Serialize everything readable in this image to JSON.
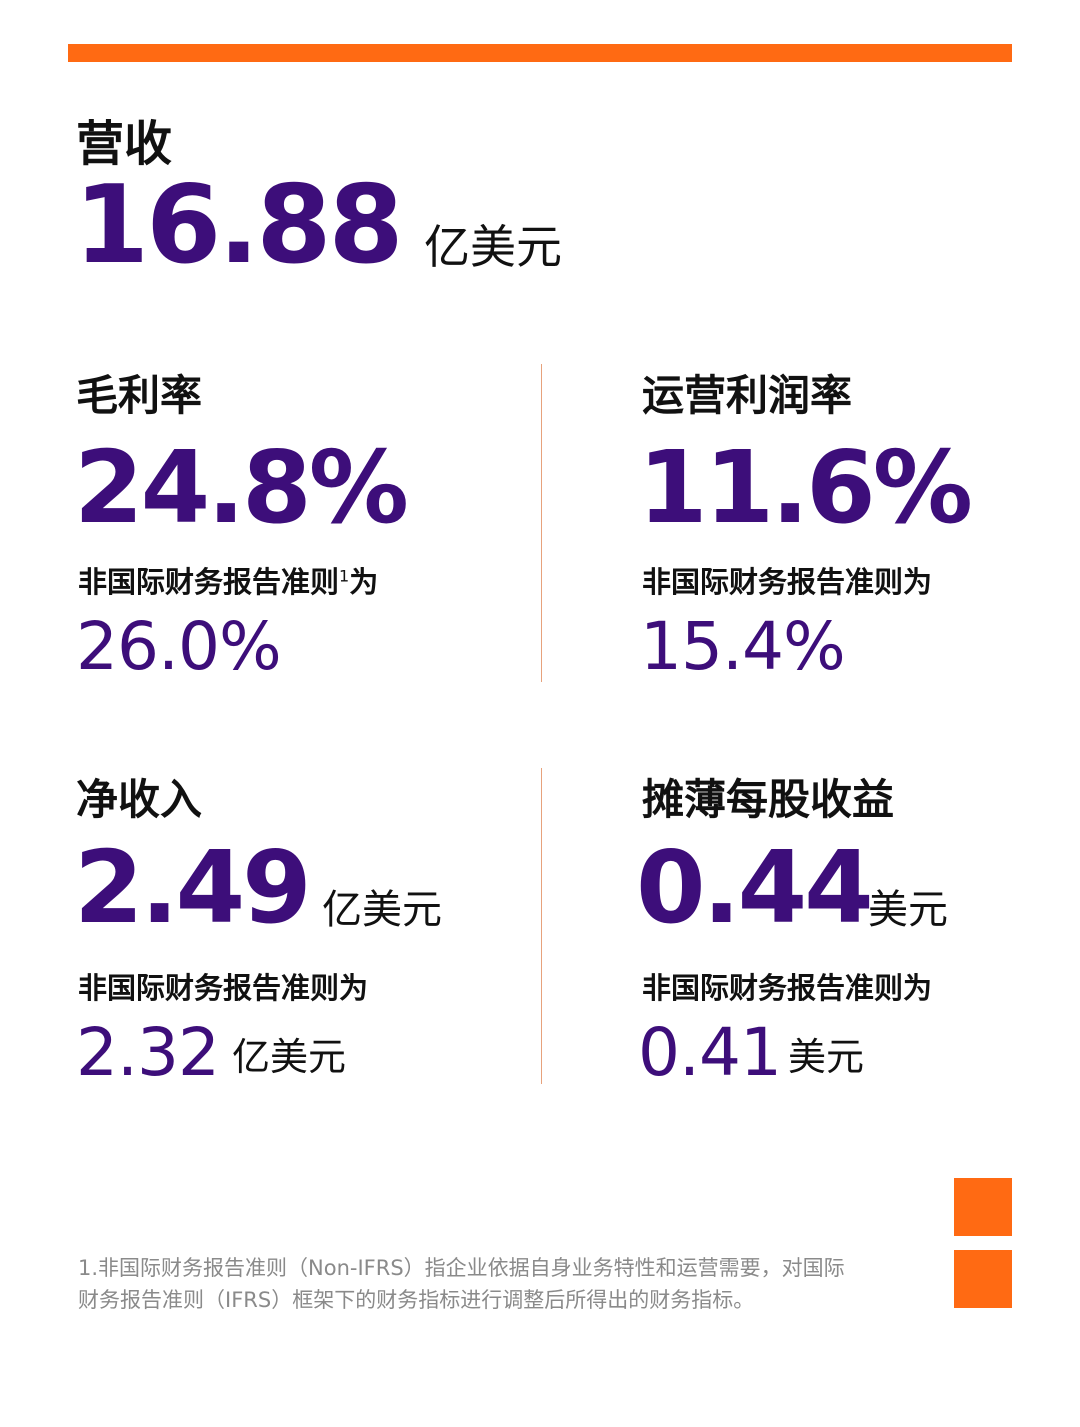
{
  "colors": {
    "accent": "#FF6A13",
    "value": "#3D0E7A",
    "divider": "#E7A27C"
  },
  "revenue": {
    "label": "营收",
    "value": "16.88",
    "unit": "亿美元"
  },
  "gross_margin": {
    "label": "毛利率",
    "value": "24.8%",
    "non_ifrs_label": "非国际财务报告准则",
    "footnote_mark": "1",
    "non_ifrs_suffix": "为",
    "non_ifrs_value": "26.0%"
  },
  "operating_margin": {
    "label": "运营利润率",
    "value": "11.6%",
    "non_ifrs_label": "非国际财务报告准则为",
    "non_ifrs_value": "15.4%"
  },
  "net_income": {
    "label": "净收入",
    "value": "2.49",
    "unit": "亿美元",
    "non_ifrs_label": "非国际财务报告准则为",
    "non_ifrs_value": "2.32",
    "non_ifrs_unit": "亿美元"
  },
  "diluted_eps": {
    "label": "摊薄每股收益",
    "value": "0.44",
    "unit": "美元",
    "non_ifrs_label": "非国际财务报告准则为",
    "non_ifrs_value": "0.41",
    "non_ifrs_unit": "美元"
  },
  "footnote": "1.非国际财务报告准则（Non-IFRS）指企业依据自身业务特性和运营需要，对国际\n财务报告准则（IFRS）框架下的财务指标进行调整后所得出的财务指标。"
}
